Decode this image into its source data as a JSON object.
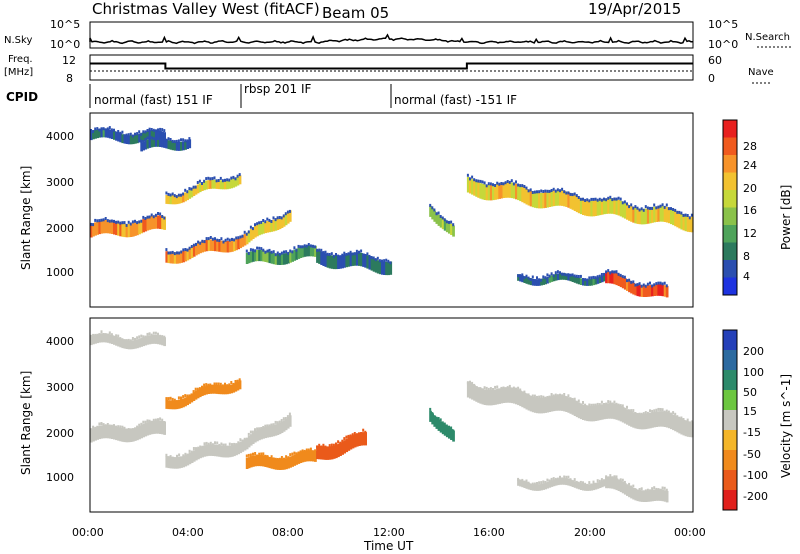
{
  "header": {
    "title": "Christmas Valley West (fitACF)",
    "beam": "Beam 05",
    "date": "19/Apr/2015"
  },
  "sky_panel": {
    "left_label": "N.Sky",
    "right_label": "N.Search",
    "left_ticks": [
      "10^5",
      "10^0"
    ],
    "right_ticks": [
      "10^5",
      "10^0"
    ]
  },
  "freq_panel": {
    "left_label_1": "Freq.",
    "left_label_2": "[MHz]",
    "left_ticks": [
      "12",
      "8"
    ],
    "right_ticks": [
      "60",
      "0"
    ],
    "right_label": "Nave"
  },
  "cpid": {
    "label": "CPID",
    "modes": [
      "normal (fast) 151 IF",
      "rbsp 201 IF",
      "normal (fast) -151 IF"
    ]
  },
  "axes": {
    "ylabel": "Slant Range [km]",
    "xlabel": "Time UT",
    "y_ticks": [
      "4000",
      "3000",
      "2000",
      "1000"
    ],
    "x_ticks": [
      "00:00",
      "04:00",
      "08:00",
      "12:00",
      "16:00",
      "20:00",
      "00:00"
    ]
  },
  "power_scale": {
    "label": "Power [dB]",
    "ticks": [
      "28",
      "24",
      "20",
      "16",
      "12",
      "8",
      "4"
    ],
    "colors": [
      "#e8201f",
      "#f05a1e",
      "#f7932a",
      "#f2c230",
      "#c6d83a",
      "#8ac24a",
      "#4ea35a",
      "#2c7a5e",
      "#2b4fb0",
      "#1e33e0"
    ]
  },
  "velocity_scale": {
    "label": "Velocity [m s^-1]",
    "ticks": [
      "200",
      "100",
      "50",
      "15",
      "-15",
      "-50",
      "-100",
      "-200"
    ],
    "colors": [
      "#2440b8",
      "#2c6aa0",
      "#2d8a6a",
      "#6cc640",
      "#c7c7c0",
      "#f4b62a",
      "#f08a1c",
      "#ea5a1a",
      "#e0201c"
    ]
  },
  "chart_data": {
    "type": "heatmap",
    "title": "Christmas Valley West (fitACF)",
    "xlabel": "Time UT",
    "ylabel": "Slant Range [km]",
    "xlim": [
      0,
      24
    ],
    "ylim": [
      180,
      4560
    ],
    "frequency_mhz": [
      {
        "start": 0,
        "end": 3,
        "value": 11.3
      },
      {
        "start": 3,
        "end": 15,
        "value": 9.7
      },
      {
        "start": 15,
        "end": 24,
        "value": 11.3
      }
    ],
    "cpid_segments": [
      {
        "start": 0,
        "end": 6,
        "label": "normal (fast) 151 IF"
      },
      {
        "start": 6,
        "end": 12,
        "label": "rbsp 201 IF"
      },
      {
        "start": 12,
        "end": 24,
        "label": "normal (fast) -151 IF"
      }
    ],
    "power_bands": [
      {
        "t": [
          0,
          3
        ],
        "r0": 1900,
        "r1": 2050,
        "width": 300,
        "power": 24
      },
      {
        "t": [
          3,
          6
        ],
        "r0": 2600,
        "r1": 3100,
        "width": 200,
        "power": 20
      },
      {
        "t": [
          3,
          6.2
        ],
        "r0": 1300,
        "r1": 1700,
        "width": 260,
        "power": 24
      },
      {
        "t": [
          6.2,
          8
        ],
        "r0": 1700,
        "r1": 2300,
        "width": 260,
        "power": 20
      },
      {
        "t": [
          6.2,
          9
        ],
        "r0": 1250,
        "r1": 1400,
        "width": 250,
        "power": 12
      },
      {
        "t": [
          0,
          3
        ],
        "r0": 4050,
        "r1": 4000,
        "width": 200,
        "power": 8
      },
      {
        "t": [
          2,
          4
        ],
        "r0": 3800,
        "r1": 3900,
        "width": 200,
        "power": 8
      },
      {
        "t": [
          9,
          12
        ],
        "r0": 1300,
        "r1": 1100,
        "width": 300,
        "power": 8
      },
      {
        "t": [
          13.5,
          14.5
        ],
        "r0": 2400,
        "r1": 1800,
        "width": 250,
        "power": 16
      },
      {
        "t": [
          15,
          24
        ],
        "r0": 2900,
        "r1": 2100,
        "width": 350,
        "power": 20
      },
      {
        "t": [
          17,
          21
        ],
        "r0": 800,
        "r1": 800,
        "width": 150,
        "power": 8
      },
      {
        "t": [
          20.5,
          23
        ],
        "r0": 800,
        "r1": 450,
        "width": 260,
        "power": 28
      }
    ],
    "velocity_bands": [
      {
        "t": [
          0,
          3
        ],
        "r0": 1900,
        "r1": 2050,
        "width": 300,
        "velocity": 0
      },
      {
        "t": [
          3,
          6
        ],
        "r0": 2600,
        "r1": 3100,
        "width": 200,
        "velocity": -60
      },
      {
        "t": [
          3,
          6.2
        ],
        "r0": 1300,
        "r1": 1700,
        "width": 260,
        "velocity": 0
      },
      {
        "t": [
          6.2,
          8
        ],
        "r0": 1700,
        "r1": 2300,
        "width": 260,
        "velocity": 0
      },
      {
        "t": [
          6.2,
          9
        ],
        "r0": 1250,
        "r1": 1400,
        "width": 250,
        "velocity": -60
      },
      {
        "t": [
          9,
          11
        ],
        "r0": 1500,
        "r1": 1800,
        "width": 300,
        "velocity": -150
      },
      {
        "t": [
          0,
          3
        ],
        "r0": 4050,
        "r1": 4000,
        "width": 200,
        "velocity": 0
      },
      {
        "t": [
          13.5,
          14.5
        ],
        "r0": 2400,
        "r1": 1800,
        "width": 250,
        "velocity": 60
      },
      {
        "t": [
          15,
          24
        ],
        "r0": 2900,
        "r1": 2100,
        "width": 350,
        "velocity": 0
      },
      {
        "t": [
          17,
          21
        ],
        "r0": 800,
        "r1": 800,
        "width": 150,
        "velocity": 0
      },
      {
        "t": [
          20.5,
          23
        ],
        "r0": 800,
        "r1": 450,
        "width": 260,
        "velocity": 0
      }
    ]
  }
}
